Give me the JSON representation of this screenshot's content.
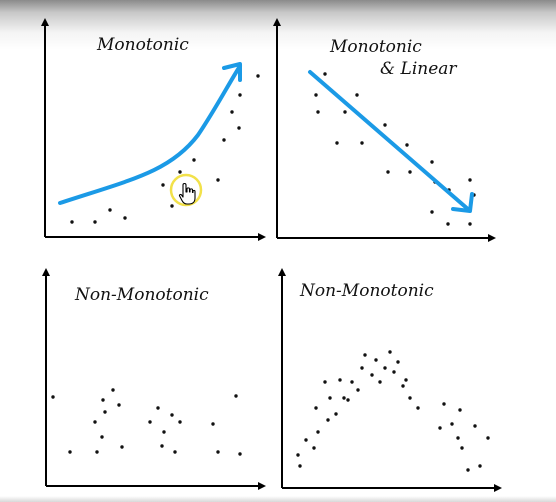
{
  "panels": [
    {
      "id": "monotonic",
      "caption_lines": [
        "Monotonic"
      ],
      "dots": [
        [
          72,
          222
        ],
        [
          95,
          222
        ],
        [
          110,
          210
        ],
        [
          125,
          218
        ],
        [
          163,
          185
        ],
        [
          172,
          206
        ],
        [
          180,
          172
        ],
        [
          190,
          200
        ],
        [
          194,
          160
        ],
        [
          218,
          180
        ],
        [
          224,
          140
        ],
        [
          232,
          112
        ],
        [
          239,
          128
        ],
        [
          240,
          95
        ],
        [
          258,
          76
        ]
      ],
      "trend": "curved-up-arrow"
    },
    {
      "id": "monotonic-linear",
      "caption_lines": [
        "Monotonic",
        "& Linear"
      ],
      "dots": [
        [
          325,
          74
        ],
        [
          316,
          95
        ],
        [
          318,
          112
        ],
        [
          345,
          112
        ],
        [
          357,
          95
        ],
        [
          337,
          143
        ],
        [
          362,
          143
        ],
        [
          385,
          125
        ],
        [
          388,
          172
        ],
        [
          407,
          145
        ],
        [
          410,
          172
        ],
        [
          432,
          162
        ],
        [
          435,
          182
        ],
        [
          449,
          190
        ],
        [
          470,
          180
        ],
        [
          432,
          212
        ],
        [
          448,
          224
        ],
        [
          470,
          224
        ],
        [
          474,
          195
        ]
      ],
      "trend": "straight-down-arrow"
    },
    {
      "id": "non-monotonic-left",
      "caption_lines": [
        "Non-Monotonic"
      ],
      "dots": [
        [
          53,
          397
        ],
        [
          70,
          452
        ],
        [
          97,
          452
        ],
        [
          95,
          422
        ],
        [
          103,
          400
        ],
        [
          105,
          412
        ],
        [
          113,
          390
        ],
        [
          119,
          405
        ],
        [
          102,
          437
        ],
        [
          122,
          447
        ],
        [
          150,
          422
        ],
        [
          158,
          408
        ],
        [
          164,
          432
        ],
        [
          172,
          415
        ],
        [
          180,
          422
        ],
        [
          162,
          446
        ],
        [
          175,
          452
        ],
        [
          213,
          424
        ],
        [
          218,
          452
        ],
        [
          236,
          396
        ],
        [
          240,
          454
        ]
      ]
    },
    {
      "id": "non-monotonic-right",
      "caption_lines": [
        "Non-Monotonic"
      ],
      "dots": [
        [
          298,
          455
        ],
        [
          300,
          466
        ],
        [
          306,
          440
        ],
        [
          314,
          448
        ],
        [
          318,
          432
        ],
        [
          316,
          408
        ],
        [
          325,
          382
        ],
        [
          330,
          398
        ],
        [
          328,
          420
        ],
        [
          336,
          414
        ],
        [
          340,
          380
        ],
        [
          344,
          398
        ],
        [
          348,
          400
        ],
        [
          352,
          382
        ],
        [
          358,
          390
        ],
        [
          362,
          368
        ],
        [
          365,
          355
        ],
        [
          372,
          375
        ],
        [
          376,
          360
        ],
        [
          380,
          382
        ],
        [
          385,
          368
        ],
        [
          390,
          352
        ],
        [
          394,
          372
        ],
        [
          398,
          362
        ],
        [
          403,
          386
        ],
        [
          406,
          380
        ],
        [
          410,
          398
        ],
        [
          418,
          408
        ],
        [
          440,
          428
        ],
        [
          444,
          404
        ],
        [
          452,
          424
        ],
        [
          458,
          438
        ],
        [
          460,
          410
        ],
        [
          462,
          448
        ],
        [
          468,
          470
        ],
        [
          475,
          426
        ],
        [
          480,
          466
        ],
        [
          488,
          438
        ]
      ]
    }
  ],
  "cursor": {
    "icon": "hand-pointer-icon",
    "highlight_color": "#f2e14a"
  },
  "colors": {
    "trend": "#1b9ae6",
    "axes": "#000000",
    "dots": "#111111"
  }
}
